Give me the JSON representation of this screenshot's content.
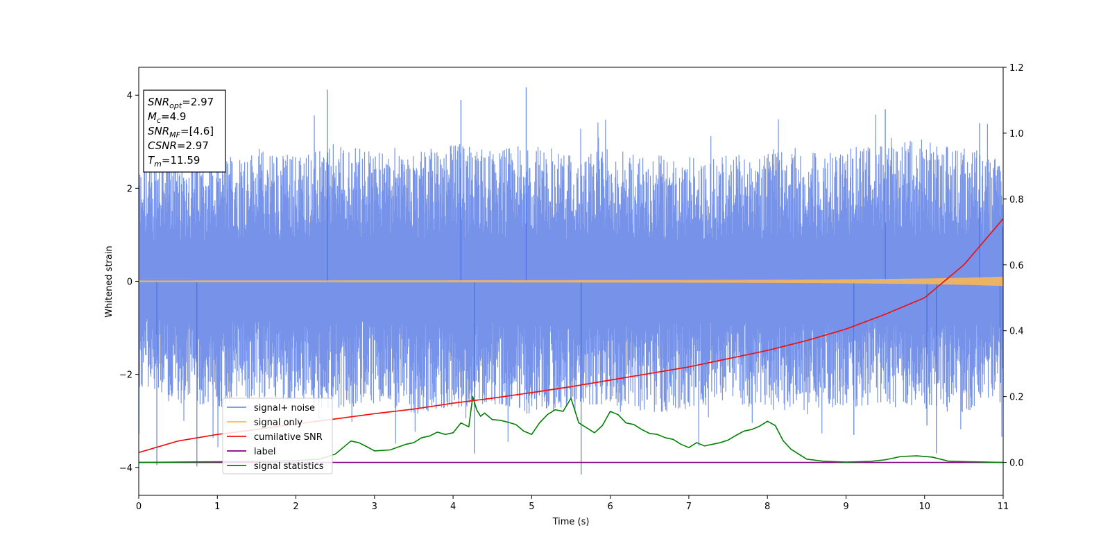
{
  "chart_data": {
    "type": "line",
    "xlabel": "Time (s)",
    "ylabel": "Whitened strain",
    "xlim": [
      0,
      11
    ],
    "ylim_left": [
      -4.6,
      4.6
    ],
    "ylim_right": [
      -0.1,
      1.2
    ],
    "x_ticks": [
      0,
      1,
      2,
      3,
      4,
      5,
      6,
      7,
      8,
      9,
      10,
      11
    ],
    "y_ticks_left": [
      -4,
      -2,
      0,
      2,
      4
    ],
    "y_ticks_right": [
      0.0,
      0.2,
      0.4,
      0.6,
      0.8,
      1.0,
      1.2
    ],
    "grid": false,
    "legend_position": "lower-left",
    "series": [
      {
        "name": "signal+ noise",
        "axis": "left",
        "color": "#4169e1",
        "kind": "noise_envelope",
        "x": [
          0,
          0.5,
          1,
          1.5,
          2,
          2.5,
          3,
          3.5,
          4,
          4.5,
          5,
          5.5,
          6,
          6.5,
          7,
          7.5,
          8,
          8.5,
          9,
          9.5,
          10,
          10.5,
          11
        ],
        "upper": [
          2.3,
          2.5,
          2.4,
          2.6,
          2.5,
          2.7,
          2.6,
          2.5,
          2.7,
          2.6,
          2.7,
          2.5,
          2.6,
          2.5,
          2.4,
          2.5,
          2.6,
          2.5,
          2.6,
          2.7,
          2.8,
          2.6,
          2.4
        ],
        "lower": [
          -2.2,
          -2.4,
          -2.5,
          -2.3,
          -2.4,
          -2.5,
          -2.4,
          -2.6,
          -2.5,
          -2.4,
          -2.6,
          -2.5,
          -2.4,
          -2.6,
          -2.5,
          -2.4,
          -2.5,
          -2.6,
          -2.5,
          -2.4,
          -2.5,
          -2.6,
          -2.2
        ],
        "spikes": [
          [
            0.23,
            -3.95
          ],
          [
            0.74,
            -3.98
          ],
          [
            2.4,
            4.12
          ],
          [
            4.1,
            3.9
          ],
          [
            4.27,
            -3.7
          ],
          [
            4.93,
            4.17
          ],
          [
            5.63,
            -4.15
          ],
          [
            9.1,
            -3.3
          ],
          [
            9.5,
            3.7
          ],
          [
            10.03,
            -3.1
          ],
          [
            10.15,
            -3.7
          ],
          [
            10.7,
            3.4
          ],
          [
            10.96,
            -2.6
          ]
        ]
      },
      {
        "name": "signal only",
        "axis": "left",
        "color": "#ffb84d",
        "kind": "chirp_envelope",
        "x": [
          0,
          2,
          4,
          6,
          7,
          8,
          9,
          9.5,
          10,
          10.5,
          11
        ],
        "amplitude": [
          0.015,
          0.017,
          0.02,
          0.025,
          0.028,
          0.033,
          0.042,
          0.05,
          0.06,
          0.075,
          0.1
        ]
      },
      {
        "name": "cumilative SNR",
        "axis": "right",
        "color": "#ee1111",
        "x": [
          0,
          0.5,
          1,
          1.5,
          2,
          2.5,
          3,
          3.5,
          4,
          4.5,
          5,
          5.5,
          6,
          6.5,
          7,
          7.5,
          8,
          8.5,
          9,
          9.5,
          10,
          10.5,
          11
        ],
        "values": [
          0.03,
          0.065,
          0.085,
          0.1,
          0.117,
          0.132,
          0.148,
          0.162,
          0.18,
          0.195,
          0.212,
          0.23,
          0.25,
          0.27,
          0.29,
          0.315,
          0.34,
          0.37,
          0.405,
          0.45,
          0.5,
          0.6,
          0.74
        ]
      },
      {
        "name": "label",
        "axis": "right",
        "color": "#800080",
        "x": [
          0,
          11
        ],
        "values": [
          0.0,
          0.0
        ]
      },
      {
        "name": "signal statistics",
        "axis": "right",
        "color": "#008000",
        "x": [
          0,
          1,
          2,
          2.3,
          2.5,
          2.6,
          2.7,
          2.8,
          2.9,
          3,
          3.2,
          3.4,
          3.5,
          3.6,
          3.7,
          3.8,
          3.9,
          4,
          4.1,
          4.2,
          4.25,
          4.3,
          4.35,
          4.4,
          4.5,
          4.6,
          4.7,
          4.8,
          4.9,
          5,
          5.1,
          5.2,
          5.3,
          5.4,
          5.5,
          5.6,
          5.7,
          5.8,
          5.9,
          6,
          6.1,
          6.2,
          6.3,
          6.4,
          6.5,
          6.6,
          6.7,
          6.8,
          6.9,
          7,
          7.1,
          7.2,
          7.3,
          7.4,
          7.5,
          7.6,
          7.7,
          7.8,
          7.9,
          8,
          8.1,
          8.2,
          8.3,
          8.4,
          8.5,
          8.7,
          9,
          9.3,
          9.5,
          9.7,
          9.9,
          10.1,
          10.3,
          10.6,
          11
        ],
        "values": [
          0.0,
          0.002,
          0.005,
          0.01,
          0.025,
          0.045,
          0.065,
          0.06,
          0.048,
          0.035,
          0.038,
          0.055,
          0.06,
          0.075,
          0.08,
          0.092,
          0.085,
          0.09,
          0.12,
          0.108,
          0.2,
          0.16,
          0.14,
          0.15,
          0.13,
          0.128,
          0.122,
          0.115,
          0.095,
          0.085,
          0.12,
          0.145,
          0.16,
          0.155,
          0.195,
          0.12,
          0.105,
          0.09,
          0.112,
          0.155,
          0.145,
          0.12,
          0.115,
          0.1,
          0.088,
          0.085,
          0.075,
          0.07,
          0.055,
          0.045,
          0.06,
          0.05,
          0.055,
          0.06,
          0.068,
          0.082,
          0.095,
          0.1,
          0.11,
          0.125,
          0.112,
          0.066,
          0.04,
          0.025,
          0.01,
          0.004,
          0.001,
          0.003,
          0.008,
          0.018,
          0.02,
          0.016,
          0.004,
          0.002,
          0.0
        ]
      }
    ]
  },
  "annotation": {
    "lines": [
      {
        "main": "SNR",
        "sub": "opt",
        "rest": "=2.97"
      },
      {
        "main": "M",
        "sub": "c",
        "rest": "=4.9"
      },
      {
        "main": "SNR",
        "sub": "MF",
        "rest": "=[4.6]"
      },
      {
        "main": "CSNR",
        "sub": "",
        "rest": "=2.97"
      },
      {
        "main": "T",
        "sub": "m",
        "rest": "=11.59"
      }
    ]
  }
}
